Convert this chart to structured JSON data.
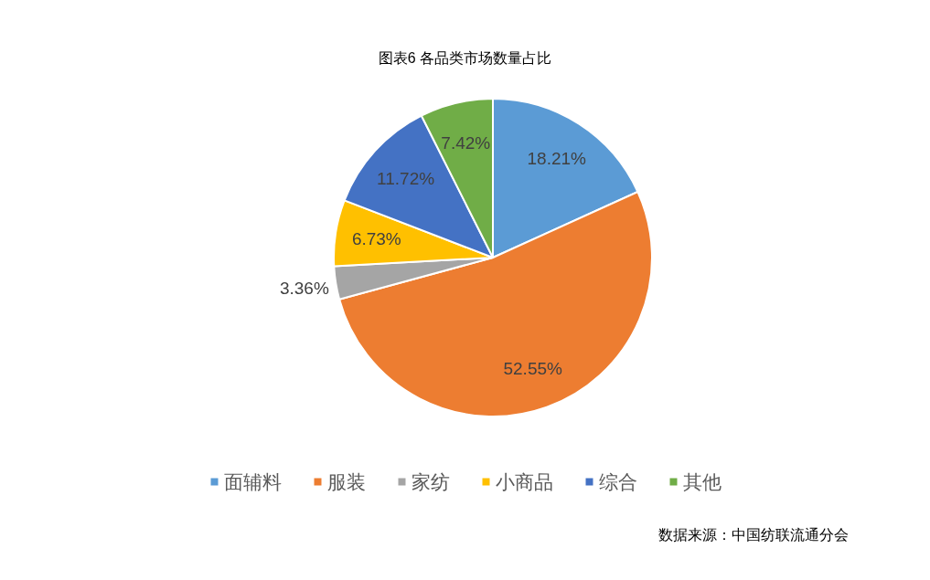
{
  "chart_data": {
    "type": "pie",
    "title": "图表6 各品类市场数量占比",
    "categories": [
      "面辅料",
      "服装",
      "家纺",
      "小商品",
      "综合",
      "其他"
    ],
    "values": [
      18.21,
      52.55,
      3.36,
      6.73,
      11.72,
      7.42
    ],
    "value_labels": [
      "18.21%",
      "52.55%",
      "3.36%",
      "6.73%",
      "11.72%",
      "7.42%"
    ],
    "colors": [
      "#5b9bd5",
      "#ed7d31",
      "#a5a5a5",
      "#ffc000",
      "#4472c4",
      "#70ad47"
    ],
    "legend": "bottom",
    "annotations": [
      "数据来源：中国纺联流通分会"
    ]
  }
}
